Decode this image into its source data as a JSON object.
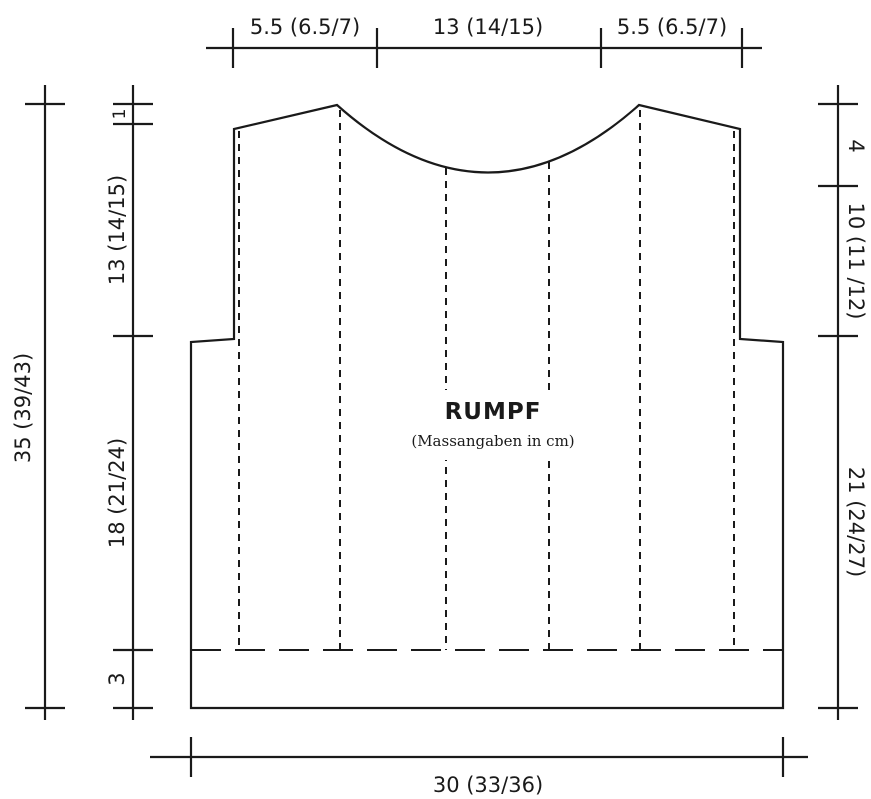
{
  "title": "RUMPF",
  "subtitle": "(Massangaben in cm)",
  "top_dims": {
    "shoulder_left": "5.5 (6.5/7)",
    "neck": "13 (14/15)",
    "shoulder_right": "5.5 (6.5/7)"
  },
  "bottom_dim": "30 (33/36)",
  "left_dims": {
    "total": "35 (39/43)",
    "slope": "1",
    "armhole": "13 (14/15)",
    "body": "18 (21/24)",
    "rib": "3"
  },
  "right_dims": {
    "neck_depth": "4",
    "upper": "10 (11 /12)",
    "lower": "21 (24/27)"
  }
}
